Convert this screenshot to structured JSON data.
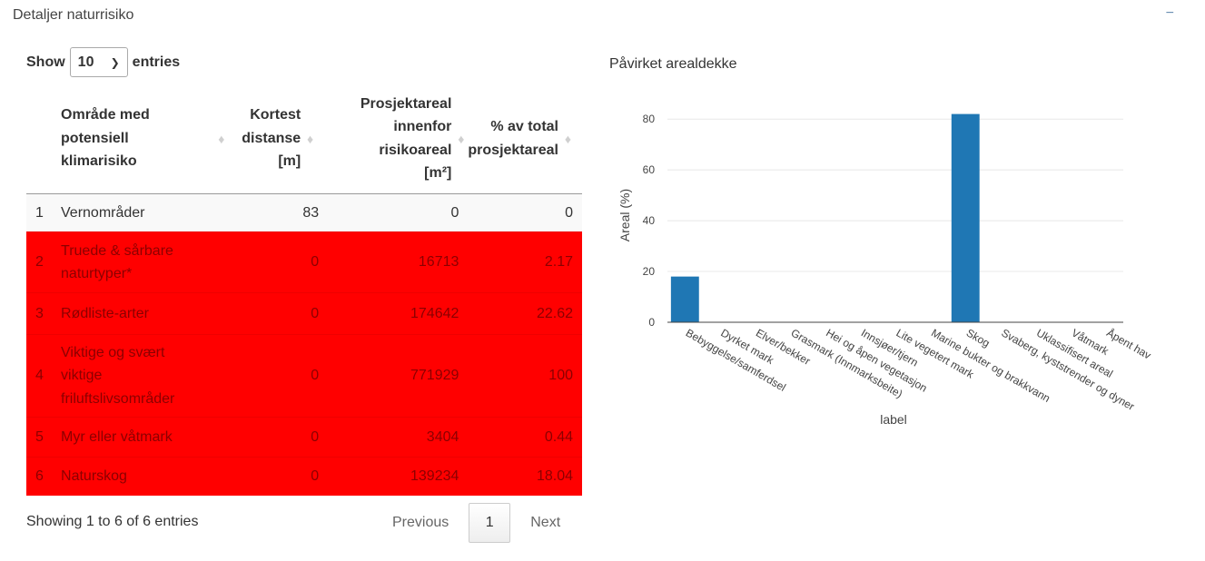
{
  "panel": {
    "title": "Detaljer naturrisiko",
    "collapse_icon": "−"
  },
  "length": {
    "show": "Show",
    "value": "10",
    "entries": "entries"
  },
  "table": {
    "headers": {
      "name": [
        "Område med",
        "potensiell",
        "klimarisiko"
      ],
      "dist": [
        "Kortest",
        "distanse",
        "[m]"
      ],
      "area": [
        "Prosjektareal",
        "innenfor",
        "risikoareal",
        "[m²]"
      ],
      "pct": [
        "% av total",
        "prosjektareal"
      ]
    },
    "rows": [
      {
        "idx": "1",
        "name": [
          "Vernområder"
        ],
        "dist": "83",
        "area": "0",
        "pct": "0",
        "risk": false
      },
      {
        "idx": "2",
        "name": [
          "Truede & sårbare",
          "naturtyper*"
        ],
        "dist": "0",
        "area": "16713",
        "pct": "2.17",
        "risk": true
      },
      {
        "idx": "3",
        "name": [
          "Rødliste-arter"
        ],
        "dist": "0",
        "area": "174642",
        "pct": "22.62",
        "risk": true
      },
      {
        "idx": "4",
        "name": [
          "Viktige og svært",
          "viktige",
          "friluftslivsområder"
        ],
        "dist": "0",
        "area": "771929",
        "pct": "100",
        "risk": true
      },
      {
        "idx": "5",
        "name": [
          "Myr eller våtmark"
        ],
        "dist": "0",
        "area": "3404",
        "pct": "0.44",
        "risk": true
      },
      {
        "idx": "6",
        "name": [
          "Naturskog"
        ],
        "dist": "0",
        "area": "139234",
        "pct": "18.04",
        "risk": true
      }
    ]
  },
  "footer": {
    "info": "Showing 1 to 6 of 6 entries",
    "previous": "Previous",
    "page": "1",
    "next": "Next"
  },
  "chart_title": "Påvirket arealdekke",
  "chart_data": {
    "type": "bar",
    "title": "",
    "xlabel": "label",
    "ylabel": "Areal (%)",
    "ylim": [
      0,
      84
    ],
    "yticks": [
      0,
      20,
      40,
      60,
      80
    ],
    "grid": true,
    "color": "#1f77b4",
    "categories": [
      "Bebyggelse/samferdsel",
      "Dyrket mark",
      "Elver/bekker",
      "Grasmark (Innmarksbeite)",
      "Hei og åpen vegetasjon",
      "Innsjøer/tjern",
      "Lite vegetert mark",
      "Marine bukter og brakkvann",
      "Skog",
      "Svaberg, kyststrender og dyner",
      "Uklassifisert areal",
      "Våtmark",
      "Åpent hav"
    ],
    "values": [
      18,
      0,
      0,
      0,
      0,
      0.1,
      0,
      0,
      82,
      0,
      0,
      0,
      0
    ]
  }
}
